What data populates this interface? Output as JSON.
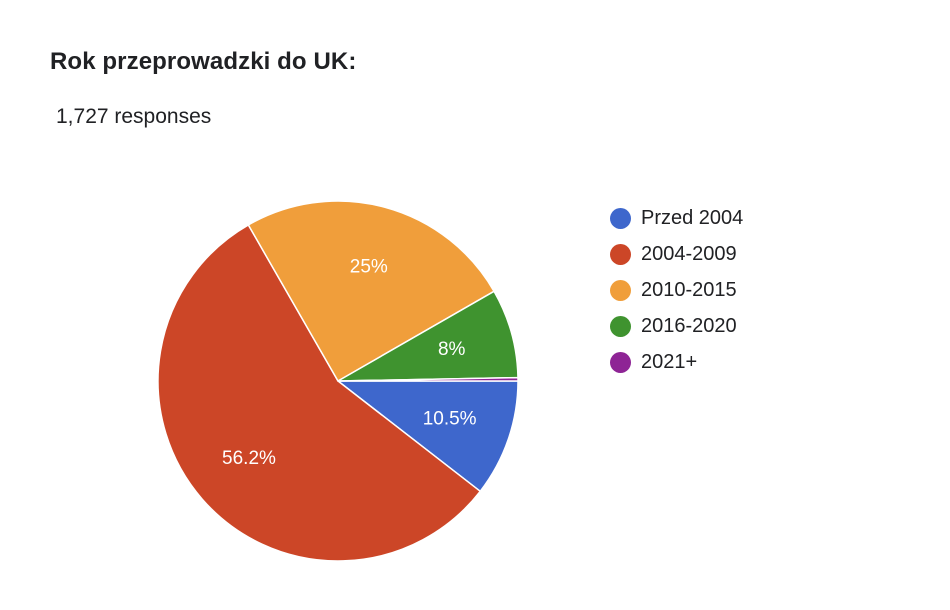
{
  "title": "Rok przeprowadzki do UK:",
  "subtitle": "1,727 responses",
  "chart_data": {
    "type": "pie",
    "title": "Rok przeprowadzki do UK:",
    "categories": [
      "Przed 2004",
      "2004-2009",
      "2010-2015",
      "2016-2020",
      "2021+"
    ],
    "values": [
      10.5,
      56.2,
      25.0,
      8.0,
      0.3
    ],
    "labels": [
      "10.5%",
      "56.2%",
      "25%",
      "8%",
      ""
    ],
    "colors": [
      "#3e67cc",
      "#cc4627",
      "#f09e3b",
      "#3f932f",
      "#8e2495"
    ],
    "start": "3 o'clock, clockwise",
    "legend_position": "right"
  }
}
